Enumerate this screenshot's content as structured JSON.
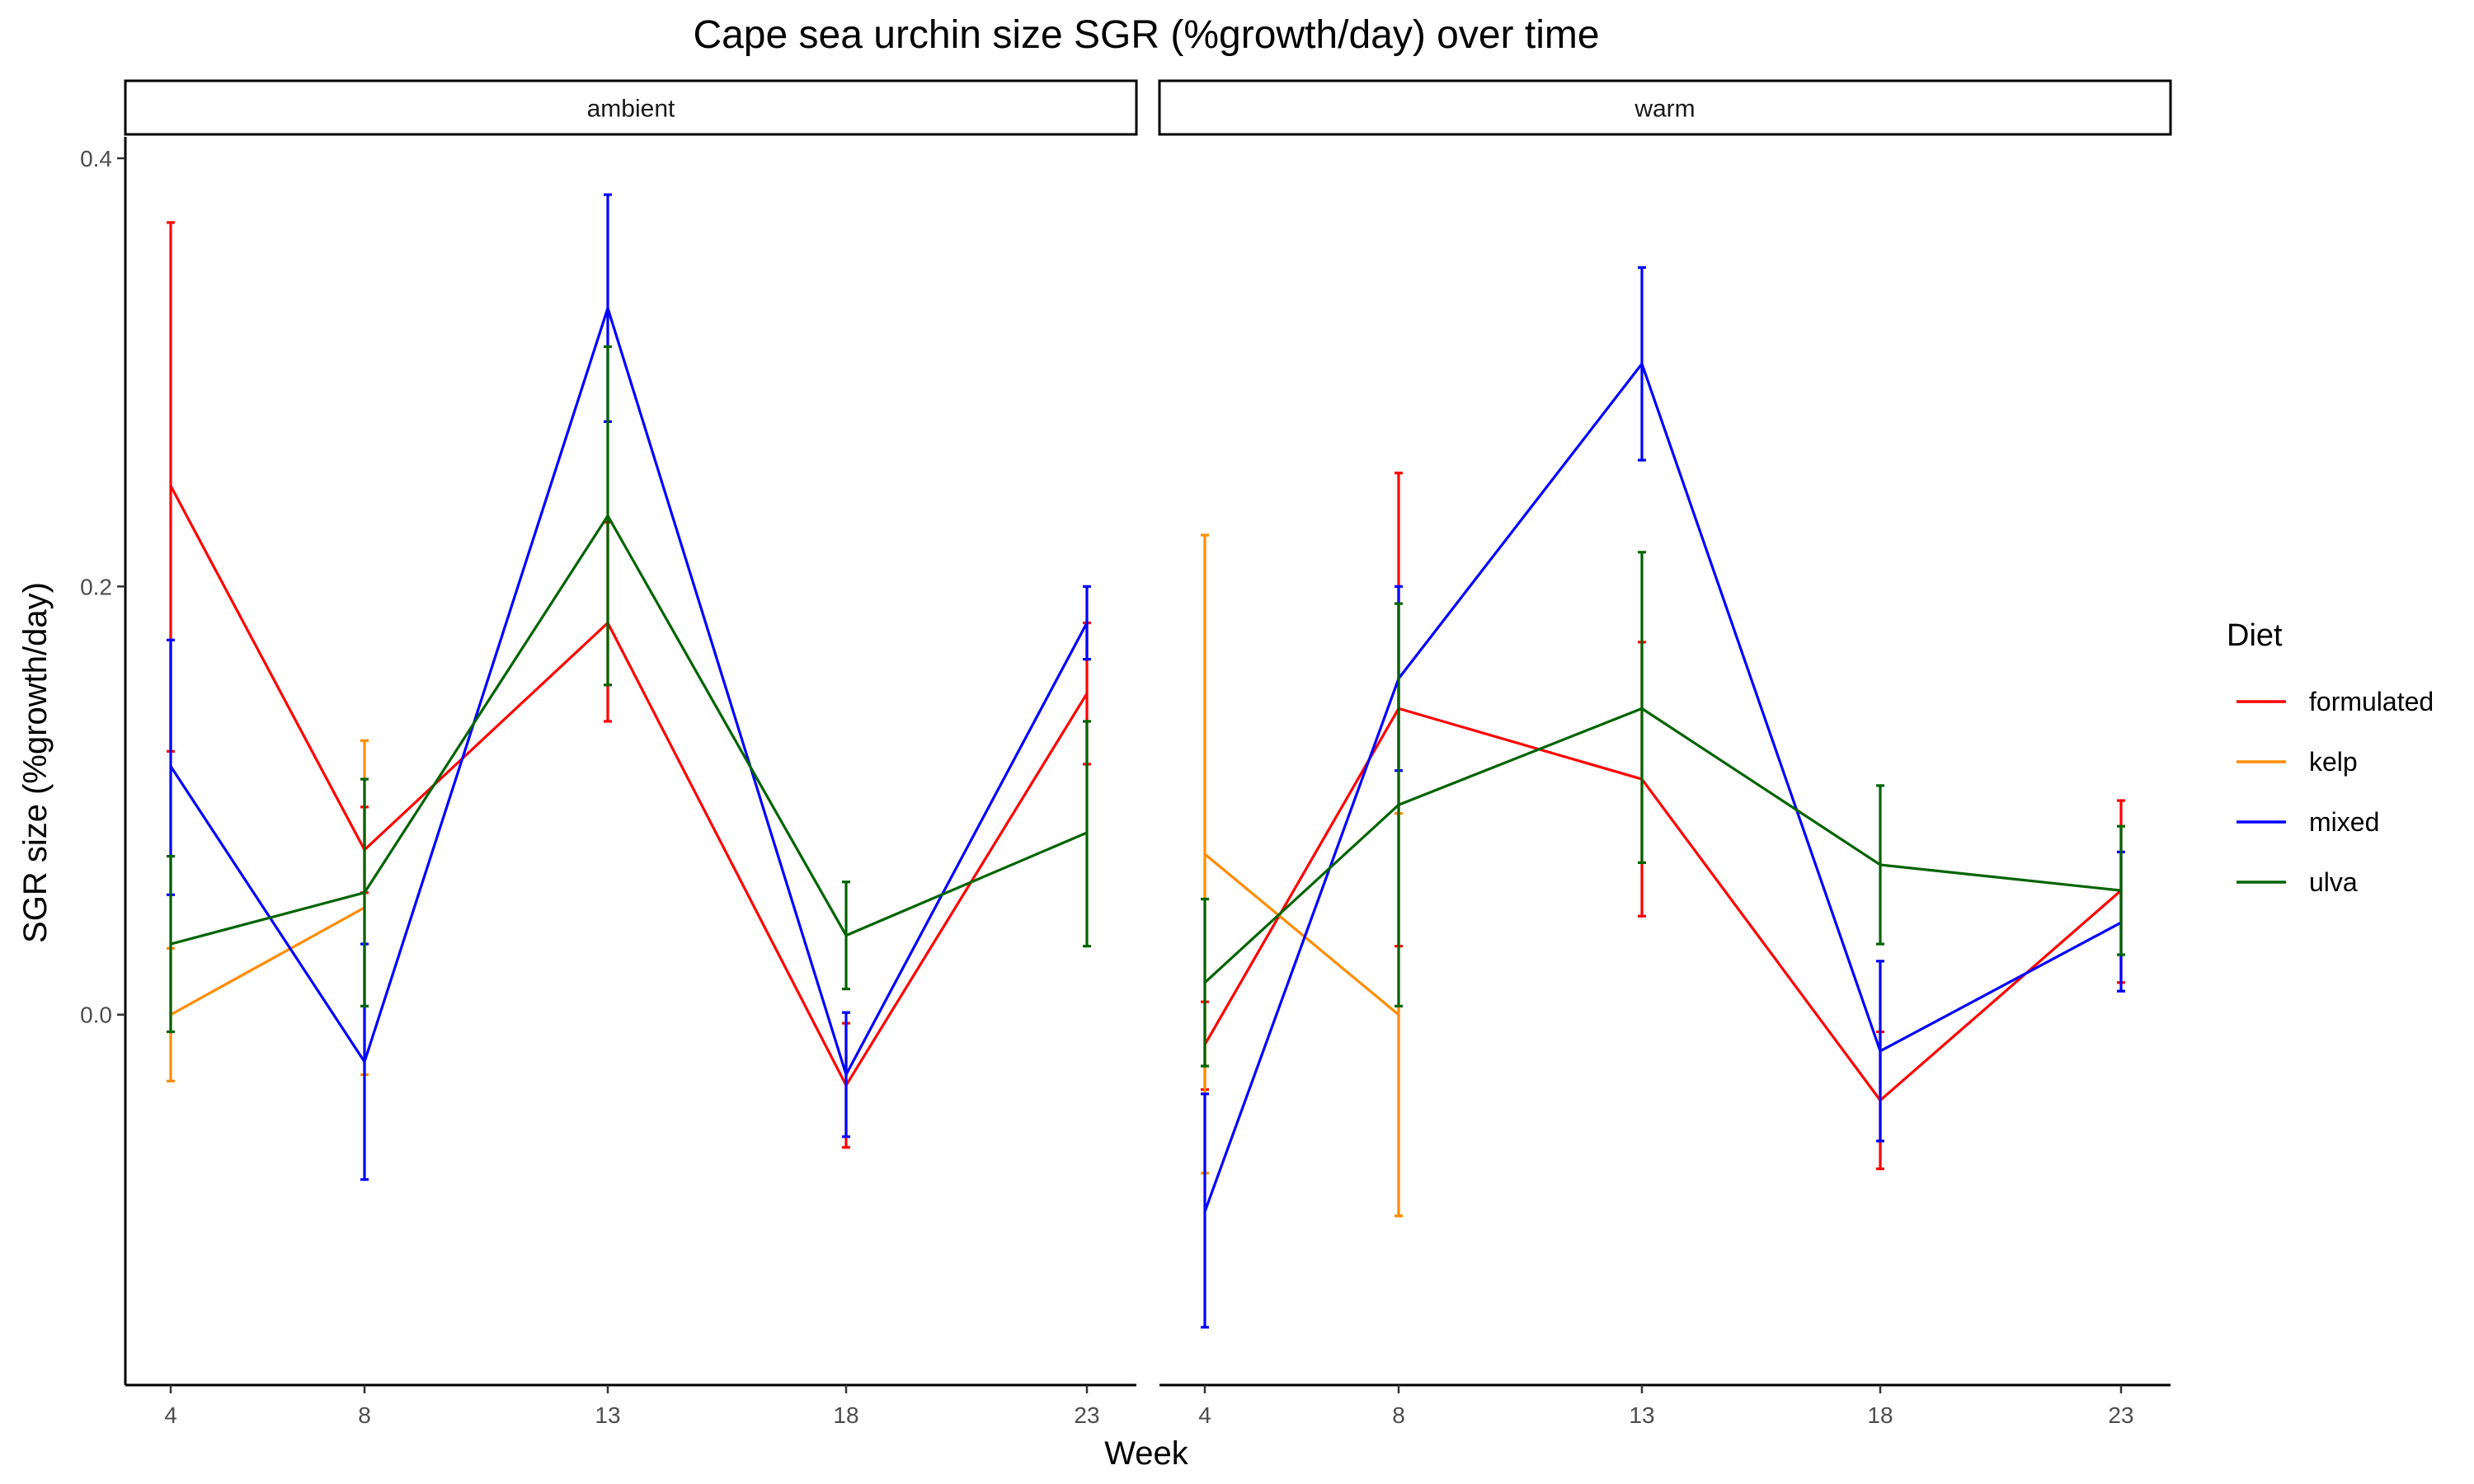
{
  "chart_data": {
    "type": "line",
    "title": "Cape sea urchin size SGR (%growth/day) over time",
    "xlabel": "Week",
    "ylabel": "SGR size (%growth/day)",
    "x_ticks": [
      4,
      8,
      13,
      18,
      23
    ],
    "y_ticks": [
      "0.0",
      "0.2",
      "0.4"
    ],
    "ylim": [
      -0.173,
      0.41
    ],
    "grid": false,
    "legend": {
      "title": "Diet",
      "position": "right"
    },
    "colors": {
      "formulated": "#ff0000",
      "kelp": "#ff8c00",
      "mixed": "#0000ff",
      "ulva": "#006400"
    },
    "panels": [
      {
        "label": "ambient",
        "series": [
          {
            "name": "formulated",
            "x": [
              4,
              8,
              13,
              18,
              23
            ],
            "y": [
              0.247,
              0.077,
              0.183,
              -0.033,
              0.15
            ],
            "lower": [
              0.123,
              0.057,
              0.137,
              -0.062,
              0.117
            ],
            "upper": [
              0.37,
              0.097,
              0.23,
              -0.004,
              0.183
            ]
          },
          {
            "name": "kelp",
            "x": [
              4,
              8
            ],
            "y": [
              0.0,
              0.05
            ],
            "lower": [
              -0.031,
              -0.028
            ],
            "upper": [
              0.031,
              0.128
            ]
          },
          {
            "name": "mixed",
            "x": [
              4,
              8,
              13,
              18,
              23
            ],
            "y": [
              0.116,
              -0.022,
              0.33,
              -0.028,
              0.183
            ],
            "lower": [
              0.056,
              -0.077,
              0.277,
              -0.057,
              0.166
            ],
            "upper": [
              0.175,
              0.033,
              0.383,
              0.001,
              0.2
            ]
          },
          {
            "name": "ulva",
            "x": [
              4,
              8,
              13,
              18,
              23
            ],
            "y": [
              0.033,
              0.057,
              0.233,
              0.037,
              0.085
            ],
            "lower": [
              -0.008,
              0.004,
              0.154,
              0.012,
              0.032
            ],
            "upper": [
              0.074,
              0.11,
              0.312,
              0.062,
              0.137
            ]
          }
        ]
      },
      {
        "label": "warm",
        "series": [
          {
            "name": "formulated",
            "x": [
              4,
              8,
              13,
              18,
              23
            ],
            "y": [
              -0.014,
              0.143,
              0.11,
              -0.04,
              0.058
            ],
            "lower": [
              -0.035,
              0.032,
              0.046,
              -0.072,
              0.015
            ],
            "upper": [
              0.006,
              0.253,
              0.174,
              -0.008,
              0.1
            ]
          },
          {
            "name": "kelp",
            "x": [
              4,
              8
            ],
            "y": [
              0.075,
              0.0
            ],
            "lower": [
              -0.074,
              -0.094
            ],
            "upper": [
              0.224,
              0.094
            ]
          },
          {
            "name": "mixed",
            "x": [
              4,
              8,
              13,
              18,
              23
            ],
            "y": [
              -0.092,
              0.157,
              0.304,
              -0.017,
              0.043
            ],
            "lower": [
              -0.146,
              0.114,
              0.259,
              -0.059,
              0.011
            ],
            "upper": [
              -0.037,
              0.2,
              0.349,
              0.025,
              0.076
            ]
          },
          {
            "name": "ulva",
            "x": [
              4,
              8,
              13,
              18,
              23
            ],
            "y": [
              0.015,
              0.098,
              0.143,
              0.07,
              0.058
            ],
            "lower": [
              -0.024,
              0.004,
              0.071,
              0.033,
              0.028
            ],
            "upper": [
              0.054,
              0.192,
              0.216,
              0.107,
              0.088
            ]
          }
        ]
      }
    ]
  }
}
